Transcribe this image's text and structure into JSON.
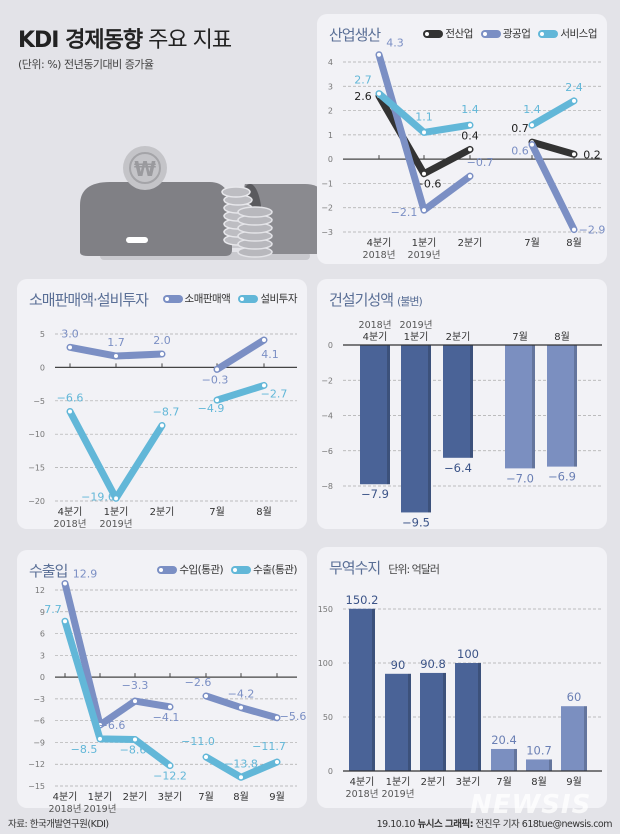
{
  "header": {
    "title_bold": "KDI 경제동향",
    "title_light": " 주요 지표",
    "subtitle": "(단위: %) 전년동기대비 증가율"
  },
  "illustration": {
    "coin_symbol": "₩"
  },
  "colors": {
    "background": "#e3e3e8",
    "panel": "#f2f2f6",
    "title_blue": "#5a6f96",
    "all_industry": "#333333",
    "mining": "#7b8fc4",
    "services": "#62b7d8",
    "bar_dark": "#4a6397",
    "bar_light": "#7b8fc0"
  },
  "chart_data": [
    {
      "id": "industrial_production",
      "type": "line",
      "title": "산업생산",
      "categories": [
        "4분기",
        "1분기",
        "2분기",
        "7월",
        "8월"
      ],
      "category_years": [
        "2018년",
        "2019년",
        "",
        "",
        ""
      ],
      "ylim": [
        -3,
        4
      ],
      "yticks": [
        4,
        3,
        2,
        1,
        0,
        -1,
        -2,
        -3
      ],
      "grid": true,
      "legend_position": "top-right",
      "series": [
        {
          "name": "전산업",
          "values": [
            2.6,
            -0.6,
            0.4,
            0.7,
            0.2
          ],
          "labels": [
            "2.6",
            "−0.6",
            "0.4",
            "0.7",
            "0.2"
          ]
        },
        {
          "name": "광공업",
          "values": [
            4.3,
            -2.1,
            -0.7,
            0.6,
            -2.9
          ],
          "labels": [
            "4.3",
            "−2.1",
            "−0.7",
            "0.6",
            "−2.9"
          ]
        },
        {
          "name": "서비스업",
          "values": [
            2.7,
            1.1,
            1.4,
            1.4,
            2.4
          ],
          "labels": [
            "2.7",
            "1.1",
            "1.4",
            "1.4",
            "2.4"
          ]
        }
      ]
    },
    {
      "id": "retail_investment",
      "type": "line",
      "title": "소매판매액·설비투자",
      "categories": [
        "4분기",
        "1분기",
        "2분기",
        "7월",
        "8월"
      ],
      "category_years": [
        "2018년",
        "2019년",
        "",
        "",
        ""
      ],
      "ylim": [
        -20,
        5
      ],
      "yticks": [
        5,
        0,
        -5,
        -10,
        -15,
        -20
      ],
      "grid": true,
      "legend_position": "top-right",
      "series": [
        {
          "name": "소매판매액",
          "values": [
            3.0,
            1.7,
            2.0,
            -0.3,
            4.1
          ],
          "labels": [
            "3.0",
            "1.7",
            "2.0",
            "−0.3",
            "4.1"
          ]
        },
        {
          "name": "설비투자",
          "values": [
            -6.6,
            -19.6,
            -8.7,
            -4.9,
            -2.7
          ],
          "labels": [
            "−6.6",
            "−19.6",
            "−8.7",
            "−4.9",
            "−2.7"
          ]
        }
      ]
    },
    {
      "id": "construction",
      "type": "bar",
      "title": "건설기성액",
      "title_note": "(불변)",
      "categories": [
        "4분기",
        "1분기",
        "2분기",
        "7월",
        "8월"
      ],
      "category_years": [
        "2018년",
        "2019년",
        "",
        "",
        ""
      ],
      "values": [
        -7.9,
        -9.5,
        -6.4,
        -7.0,
        -6.9
      ],
      "labels": [
        "−7.9",
        "−9.5",
        "−6.4",
        "−7.0",
        "−6.9"
      ],
      "ylim": [
        -8,
        0
      ],
      "yticks": [
        0,
        -2,
        -4,
        -6,
        -8
      ],
      "grid": true
    },
    {
      "id": "trade",
      "type": "line",
      "title": "수출입",
      "categories": [
        "4분기",
        "1분기",
        "2분기",
        "3분기",
        "7월",
        "8월",
        "9월"
      ],
      "category_years": [
        "2018년",
        "2019년",
        "",
        "",
        "",
        "",
        ""
      ],
      "ylim": [
        -15,
        12
      ],
      "yticks": [
        12,
        9,
        6,
        3,
        0,
        -3,
        -6,
        -9,
        -12,
        -15
      ],
      "grid": true,
      "legend_position": "top-right",
      "series": [
        {
          "name": "수입(통관)",
          "values": [
            12.9,
            -6.6,
            -3.3,
            -4.1,
            -2.6,
            -4.2,
            -5.6
          ],
          "labels": [
            "12.9",
            "−6.6",
            "−3.3",
            "−4.1",
            "−2.6",
            "−4.2",
            "−5.6"
          ]
        },
        {
          "name": "수출(통관)",
          "values": [
            7.7,
            -8.5,
            -8.6,
            -12.2,
            -11.0,
            -13.8,
            -11.7
          ],
          "labels": [
            "7.7",
            "−8.5",
            "−8.6",
            "−12.2",
            "−11.0",
            "−13.8",
            "−11.7"
          ]
        }
      ]
    },
    {
      "id": "trade_balance",
      "type": "bar",
      "title": "무역수지",
      "unit": "단위: 억달러",
      "categories": [
        "4분기",
        "1분기",
        "2분기",
        "3분기",
        "7월",
        "8월",
        "9월"
      ],
      "category_years": [
        "2018년",
        "2019년",
        "",
        "",
        "",
        "",
        ""
      ],
      "values": [
        150.2,
        90,
        90.8,
        100,
        20.4,
        10.7,
        60
      ],
      "labels": [
        "150.2",
        "90",
        "90.8",
        "100",
        "20.4",
        "10.7",
        "60"
      ],
      "ylim": [
        0,
        150
      ],
      "yticks": [
        150,
        100,
        50,
        0
      ],
      "grid": true
    }
  ],
  "footer": {
    "source": "자료: 한국개발연구원(KDI)",
    "date": "19.10.10",
    "agency": "뉴시스 그래픽:",
    "credit": "전진우 기자 618tue@newsis.com",
    "watermark": "NEWSIS"
  }
}
